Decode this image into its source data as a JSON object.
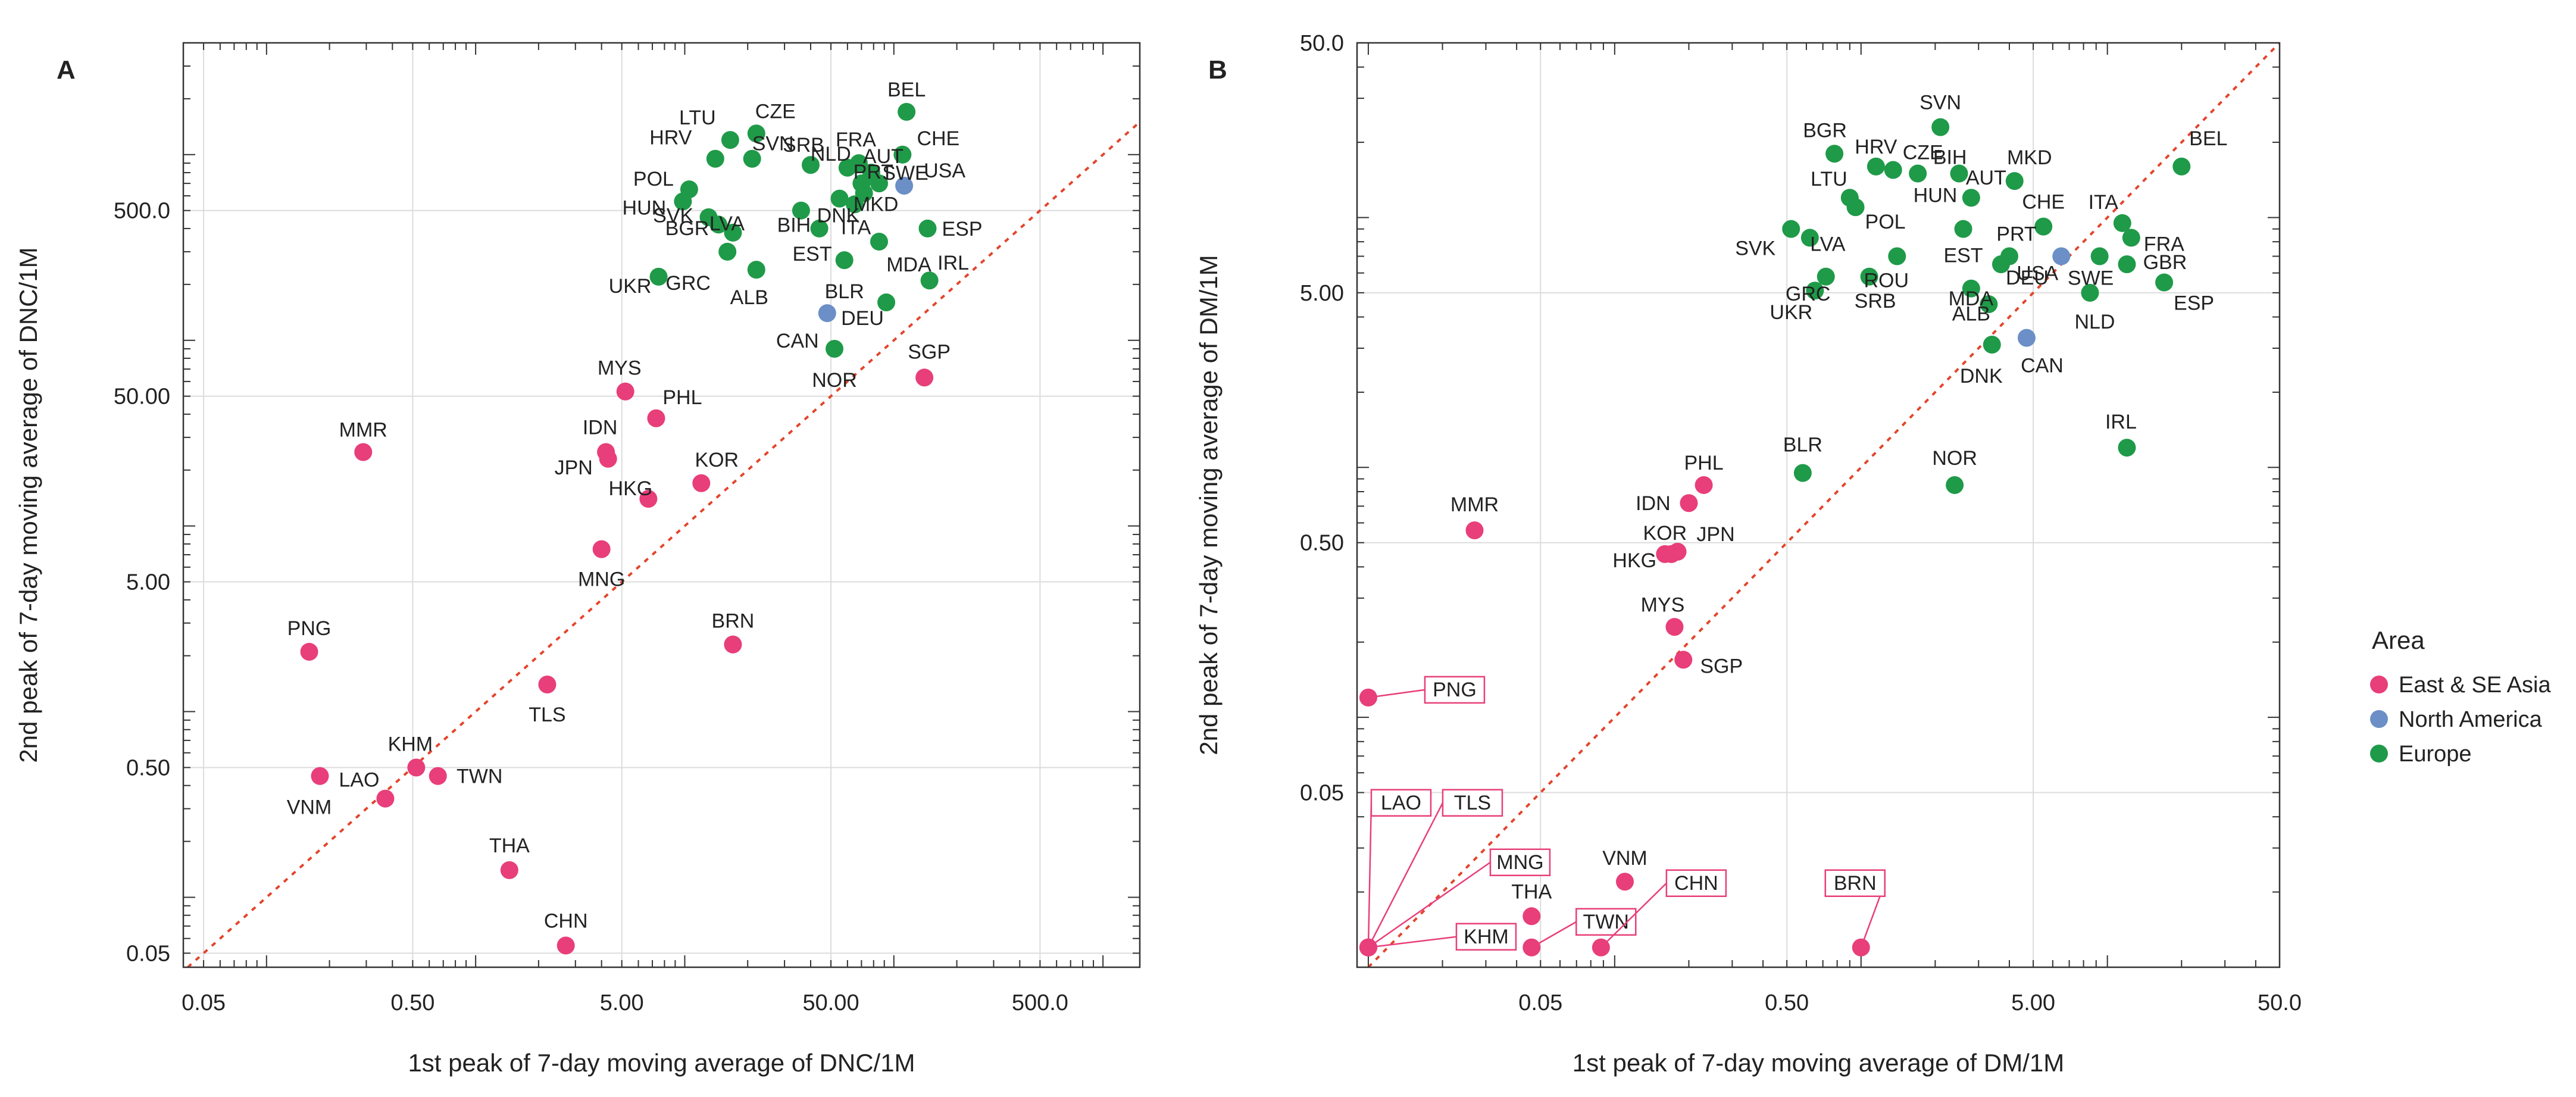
{
  "colors": {
    "east_se_asia": "#e83e7a",
    "north_america": "#6b8fc6",
    "europe": "#1f9a48",
    "diagonal": "#e2452c",
    "grid": "#dcdcdc",
    "axis": "#333333",
    "text": "#222222"
  },
  "legend": {
    "title": "Area",
    "items": [
      {
        "key": "east_se_asia",
        "label": "East & SE Asia"
      },
      {
        "key": "north_america",
        "label": "North America"
      },
      {
        "key": "europe",
        "label": "Europe"
      }
    ]
  },
  "chart_data": [
    {
      "type": "scatter",
      "panel": "A",
      "xscale": "log",
      "yscale": "log",
      "xlim": [
        0.04,
        1500
      ],
      "ylim": [
        0.042,
        4000
      ],
      "xticks": [
        0.05,
        0.5,
        5,
        50,
        500
      ],
      "xtick_labels": [
        "0.05",
        "0.50",
        "5.00",
        "50.00",
        "500.0"
      ],
      "yticks": [
        0.05,
        0.5,
        5,
        50,
        500
      ],
      "ytick_labels": [
        "0.05",
        "0.50",
        "5.00",
        "50.00",
        "500.0"
      ],
      "xlabel": "1st peak of 7-day moving average of DNC/1M",
      "ylabel": "2nd peak of 7-day moving average of DNC/1M",
      "diagonal": "y = x",
      "points": [
        {
          "label": "BEL",
          "area": "europe",
          "x": 115,
          "y": 1700
        },
        {
          "label": "CHE",
          "area": "europe",
          "x": 110,
          "y": 1000
        },
        {
          "label": "FRA",
          "area": "europe",
          "x": 68,
          "y": 900
        },
        {
          "label": "AUT",
          "area": "europe",
          "x": 78,
          "y": 800
        },
        {
          "label": "CZE",
          "area": "europe",
          "x": 22,
          "y": 1300
        },
        {
          "label": "LTU",
          "area": "europe",
          "x": 16.5,
          "y": 1200
        },
        {
          "label": "HRV",
          "area": "europe",
          "x": 14,
          "y": 950
        },
        {
          "label": "SRB",
          "area": "europe",
          "x": 40,
          "y": 880
        },
        {
          "label": "SVN",
          "area": "europe",
          "x": 21,
          "y": 950
        },
        {
          "label": "NLD",
          "area": "europe",
          "x": 60,
          "y": 850
        },
        {
          "label": "PRT",
          "area": "europe",
          "x": 70,
          "y": 700
        },
        {
          "label": "SWE",
          "area": "europe",
          "x": 85,
          "y": 700
        },
        {
          "label": "MKD",
          "area": "europe",
          "x": 72,
          "y": 620
        },
        {
          "label": "POL",
          "area": "europe",
          "x": 10.5,
          "y": 650
        },
        {
          "label": "HUN",
          "area": "europe",
          "x": 9.8,
          "y": 560
        },
        {
          "label": "USA",
          "area": "north_america",
          "x": 112,
          "y": 680
        },
        {
          "label": "ESP",
          "area": "europe",
          "x": 145,
          "y": 400
        },
        {
          "label": "BGR",
          "area": "europe",
          "x": 13,
          "y": 460
        },
        {
          "label": "BIH",
          "area": "europe",
          "x": 36,
          "y": 500
        },
        {
          "label": "DNK",
          "area": "europe",
          "x": 55,
          "y": 580
        },
        {
          "label": "EST",
          "area": "europe",
          "x": 44,
          "y": 400
        },
        {
          "label": "SVK",
          "area": "europe",
          "x": 14.5,
          "y": 420
        },
        {
          "label": "LVA",
          "area": "europe",
          "x": 17,
          "y": 380
        },
        {
          "label": "ITA",
          "area": "europe",
          "x": 65,
          "y": 540
        },
        {
          "label": "MDA",
          "area": "europe",
          "x": 85,
          "y": 340
        },
        {
          "label": "IRL",
          "area": "europe",
          "x": 148,
          "y": 210
        },
        {
          "label": "UKR",
          "area": "europe",
          "x": 7.5,
          "y": 220
        },
        {
          "label": "ALB",
          "area": "europe",
          "x": 22,
          "y": 240
        },
        {
          "label": "GRC",
          "area": "europe",
          "x": 16,
          "y": 300
        },
        {
          "label": "DEU",
          "area": "europe",
          "x": 92,
          "y": 160
        },
        {
          "label": "BLR",
          "area": "europe",
          "x": 58,
          "y": 270
        },
        {
          "label": "CAN",
          "area": "north_america",
          "x": 48,
          "y": 140
        },
        {
          "label": "NOR",
          "area": "europe",
          "x": 52,
          "y": 90
        },
        {
          "label": "SGP",
          "area": "east_se_asia",
          "x": 140,
          "y": 63
        },
        {
          "label": "MYS",
          "area": "east_se_asia",
          "x": 5.2,
          "y": 53
        },
        {
          "label": "PHL",
          "area": "east_se_asia",
          "x": 7.3,
          "y": 38
        },
        {
          "label": "IDN",
          "area": "east_se_asia",
          "x": 4.2,
          "y": 25
        },
        {
          "label": "JPN",
          "area": "east_se_asia",
          "x": 4.3,
          "y": 23
        },
        {
          "label": "MMR",
          "area": "east_se_asia",
          "x": 0.29,
          "y": 25
        },
        {
          "label": "KOR",
          "area": "east_se_asia",
          "x": 12,
          "y": 17
        },
        {
          "label": "HKG",
          "area": "east_se_asia",
          "x": 6.7,
          "y": 14
        },
        {
          "label": "MNG",
          "area": "east_se_asia",
          "x": 4,
          "y": 7.5
        },
        {
          "label": "PNG",
          "area": "east_se_asia",
          "x": 0.16,
          "y": 2.1
        },
        {
          "label": "BRN",
          "area": "east_se_asia",
          "x": 17,
          "y": 2.3
        },
        {
          "label": "TLS",
          "area": "east_se_asia",
          "x": 2.2,
          "y": 1.4
        },
        {
          "label": "KHM",
          "area": "east_se_asia",
          "x": 0.52,
          "y": 0.5
        },
        {
          "label": "VNM",
          "area": "east_se_asia",
          "x": 0.18,
          "y": 0.45
        },
        {
          "label": "TWN",
          "area": "east_se_asia",
          "x": 0.66,
          "y": 0.45
        },
        {
          "label": "LAO",
          "area": "east_se_asia",
          "x": 0.37,
          "y": 0.34
        },
        {
          "label": "THA",
          "area": "east_se_asia",
          "x": 1.45,
          "y": 0.14
        },
        {
          "label": "CHN",
          "area": "east_se_asia",
          "x": 2.7,
          "y": 0.055
        }
      ]
    },
    {
      "type": "scatter",
      "panel": "B",
      "xscale": "log",
      "yscale": "log",
      "xlim": [
        0.009,
        50
      ],
      "ylim": [
        0.01,
        50
      ],
      "xticks": [
        0.05,
        0.5,
        5,
        50
      ],
      "xtick_labels": [
        "0.05",
        "0.50",
        "5.00",
        "50.0"
      ],
      "yticks": [
        0.05,
        0.5,
        5,
        50
      ],
      "ytick_labels": [
        "0.05",
        "0.50",
        "5.00",
        "50.0"
      ],
      "xlabel": "1st peak of 7-day moving average of DM/1M",
      "ylabel": "2nd peak of 7-day moving average of DM/1M",
      "diagonal": "y = x",
      "points": [
        {
          "label": "SVN",
          "area": "europe",
          "x": 2.1,
          "y": 23
        },
        {
          "label": "BGR",
          "area": "europe",
          "x": 0.78,
          "y": 18
        },
        {
          "label": "HRV",
          "area": "europe",
          "x": 1.15,
          "y": 16
        },
        {
          "label": "CZE",
          "area": "europe",
          "x": 1.35,
          "y": 15.5
        },
        {
          "label": "BIH",
          "area": "europe",
          "x": 1.7,
          "y": 15
        },
        {
          "label": "HUN",
          "area": "europe",
          "x": 2.5,
          "y": 15
        },
        {
          "label": "AUT",
          "area": "europe",
          "x": 2.8,
          "y": 12
        },
        {
          "label": "MKD",
          "area": "europe",
          "x": 4.2,
          "y": 14
        },
        {
          "label": "BEL",
          "area": "europe",
          "x": 20,
          "y": 16
        },
        {
          "label": "LTU",
          "area": "europe",
          "x": 0.9,
          "y": 12
        },
        {
          "label": "POL",
          "area": "europe",
          "x": 0.95,
          "y": 11
        },
        {
          "label": "EST",
          "area": "europe",
          "x": 2.6,
          "y": 9
        },
        {
          "label": "ITA",
          "area": "europe",
          "x": 11.5,
          "y": 9.5
        },
        {
          "label": "CHE",
          "area": "europe",
          "x": 5.5,
          "y": 9.2
        },
        {
          "label": "FRA",
          "area": "europe",
          "x": 12.5,
          "y": 8.3
        },
        {
          "label": "SVK",
          "area": "europe",
          "x": 0.52,
          "y": 9
        },
        {
          "label": "LVA",
          "area": "europe",
          "x": 0.62,
          "y": 8.3
        },
        {
          "label": "PRT",
          "area": "europe",
          "x": 4,
          "y": 7
        },
        {
          "label": "ROU",
          "area": "europe",
          "x": 1.4,
          "y": 7
        },
        {
          "label": "DEU",
          "area": "europe",
          "x": 3.7,
          "y": 6.5
        },
        {
          "label": "GBR",
          "area": "europe",
          "x": 12,
          "y": 6.5
        },
        {
          "label": "SWE",
          "area": "europe",
          "x": 9.3,
          "y": 7
        },
        {
          "label": "USA",
          "area": "north_america",
          "x": 6.5,
          "y": 7
        },
        {
          "label": "GRC",
          "area": "europe",
          "x": 0.72,
          "y": 5.8
        },
        {
          "label": "SRB",
          "area": "europe",
          "x": 1.08,
          "y": 5.8
        },
        {
          "label": "ALB",
          "area": "europe",
          "x": 2.8,
          "y": 5.2
        },
        {
          "label": "ESP",
          "area": "europe",
          "x": 17,
          "y": 5.5
        },
        {
          "label": "UKR",
          "area": "europe",
          "x": 0.65,
          "y": 5.1
        },
        {
          "label": "MDA",
          "area": "europe",
          "x": 3.3,
          "y": 4.5
        },
        {
          "label": "NLD",
          "area": "europe",
          "x": 8.5,
          "y": 5
        },
        {
          "label": "DNK",
          "area": "europe",
          "x": 3.4,
          "y": 3.1
        },
        {
          "label": "CAN",
          "area": "north_america",
          "x": 4.7,
          "y": 3.3
        },
        {
          "label": "IRL",
          "area": "europe",
          "x": 12,
          "y": 1.2
        },
        {
          "label": "BLR",
          "area": "europe",
          "x": 0.58,
          "y": 0.95
        },
        {
          "label": "NOR",
          "area": "europe",
          "x": 2.4,
          "y": 0.85
        },
        {
          "label": "PHL",
          "area": "east_se_asia",
          "x": 0.23,
          "y": 0.85
        },
        {
          "label": "IDN",
          "area": "east_se_asia",
          "x": 0.2,
          "y": 0.72
        },
        {
          "label": "MMR",
          "area": "east_se_asia",
          "x": 0.027,
          "y": 0.56
        },
        {
          "label": "KOR",
          "area": "east_se_asia",
          "x": 0.16,
          "y": 0.45
        },
        {
          "label": "HKG",
          "area": "east_se_asia",
          "x": 0.17,
          "y": 0.45
        },
        {
          "label": "JPN",
          "area": "east_se_asia",
          "x": 0.18,
          "y": 0.46
        },
        {
          "label": "MYS",
          "area": "east_se_asia",
          "x": 0.175,
          "y": 0.23
        },
        {
          "label": "SGP",
          "area": "east_se_asia",
          "x": 0.19,
          "y": 0.17
        },
        {
          "label": "PNG",
          "area": "east_se_asia",
          "x": 0.01,
          "y": 0.12
        },
        {
          "label": "VNM",
          "area": "east_se_asia",
          "x": 0.11,
          "y": 0.022
        },
        {
          "label": "THA",
          "area": "east_se_asia",
          "x": 0.046,
          "y": 0.016
        },
        {
          "label": "LAO",
          "area": "east_se_asia",
          "x": 0.01,
          "y": 0.012
        },
        {
          "label": "TLS",
          "area": "east_se_asia",
          "x": 0.01,
          "y": 0.012
        },
        {
          "label": "MNG",
          "area": "east_se_asia",
          "x": 0.01,
          "y": 0.012
        },
        {
          "label": "KHM",
          "area": "east_se_asia",
          "x": 0.01,
          "y": 0.012
        },
        {
          "label": "TWN",
          "area": "east_se_asia",
          "x": 0.046,
          "y": 0.012
        },
        {
          "label": "CHN",
          "area": "east_se_asia",
          "x": 0.088,
          "y": 0.012
        },
        {
          "label": "BRN",
          "area": "east_se_asia",
          "x": 1.0,
          "y": 0.012
        }
      ]
    }
  ]
}
